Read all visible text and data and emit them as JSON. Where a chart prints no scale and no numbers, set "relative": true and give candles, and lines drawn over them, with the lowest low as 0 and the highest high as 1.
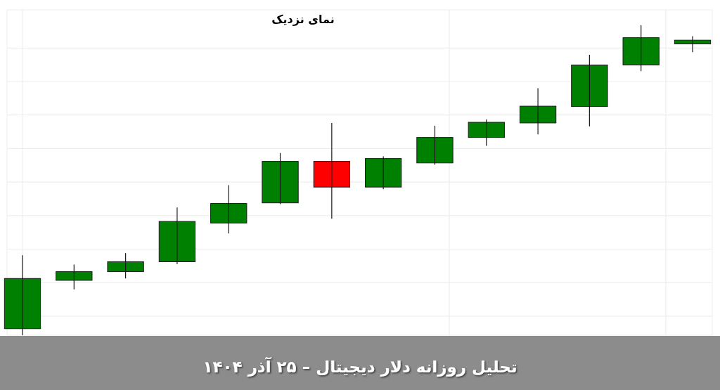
{
  "chart_data": {
    "type": "candlestick",
    "title": "نمای نزدیک",
    "annotations": [
      "تحلیل روزانه دلار دیجیتال – ۲۵ آذر ۱۴۰۴"
    ],
    "categories": [
      null,
      null,
      null,
      null,
      null,
      null,
      null,
      null,
      null,
      null,
      null,
      null,
      null,
      null
    ],
    "relative": true,
    "grid": true,
    "ohlc": [
      [
        0.021,
        0.258,
        0,
        0.183
      ],
      [
        0.177,
        0.228,
        0.148,
        0.205
      ],
      [
        0.205,
        0.265,
        0.183,
        0.237
      ],
      [
        0.237,
        0.412,
        0.229,
        0.367
      ],
      [
        0.362,
        0.484,
        0.328,
        0.425
      ],
      [
        0.427,
        0.588,
        0.423,
        0.561
      ],
      [
        0.561,
        0.685,
        0.376,
        0.478
      ],
      [
        0.478,
        0.577,
        0.471,
        0.57
      ],
      [
        0.556,
        0.676,
        0.55,
        0.638
      ],
      [
        0.638,
        0.696,
        0.611,
        0.687
      ],
      [
        0.685,
        0.797,
        0.648,
        0.739
      ],
      [
        0.738,
        0.905,
        0.674,
        0.872
      ],
      [
        0.872,
        1,
        0.852,
        0.96
      ],
      [
        0.94,
        0.965,
        0.913,
        0.952
      ]
    ],
    "colors": [
      "#008000",
      "#008000",
      "#008000",
      "#008000",
      "#008000",
      "#008000",
      "#ff0000",
      "#008000",
      "#008000",
      "#008000",
      "#008000",
      "#008000",
      "#008000",
      "#008000"
    ]
  }
}
